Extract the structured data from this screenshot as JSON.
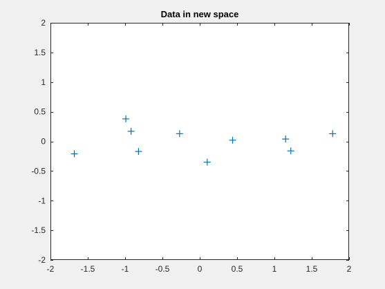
{
  "chart_data": {
    "type": "scatter",
    "title": "Data in new space",
    "xlabel": "",
    "ylabel": "",
    "xlim": [
      -2,
      2
    ],
    "ylim": [
      -2,
      2
    ],
    "x_ticks": [
      -2,
      -1.5,
      -1,
      -0.5,
      0,
      0.5,
      1,
      1.5,
      2
    ],
    "x_tick_labels": [
      "-2",
      "-1.5",
      "-1",
      "-0.5",
      "0",
      "0.5",
      "1",
      "1.5",
      "2"
    ],
    "y_ticks": [
      -2,
      -1.5,
      -1,
      -0.5,
      0,
      0.5,
      1,
      1.5,
      2
    ],
    "y_tick_labels": [
      "-2",
      "-1.5",
      "-1",
      "-0.5",
      "0",
      "0.5",
      "1",
      "1.5",
      "2"
    ],
    "grid": false,
    "marker": "+",
    "marker_color": "#0072bd",
    "points": [
      {
        "x": -1.68,
        "y": -0.21
      },
      {
        "x": -0.99,
        "y": 0.38
      },
      {
        "x": -0.92,
        "y": 0.17
      },
      {
        "x": -0.82,
        "y": -0.17
      },
      {
        "x": -0.27,
        "y": 0.13
      },
      {
        "x": 0.1,
        "y": -0.35
      },
      {
        "x": 0.44,
        "y": 0.02
      },
      {
        "x": 1.15,
        "y": 0.04
      },
      {
        "x": 1.22,
        "y": -0.16
      },
      {
        "x": 1.78,
        "y": 0.13
      }
    ]
  }
}
